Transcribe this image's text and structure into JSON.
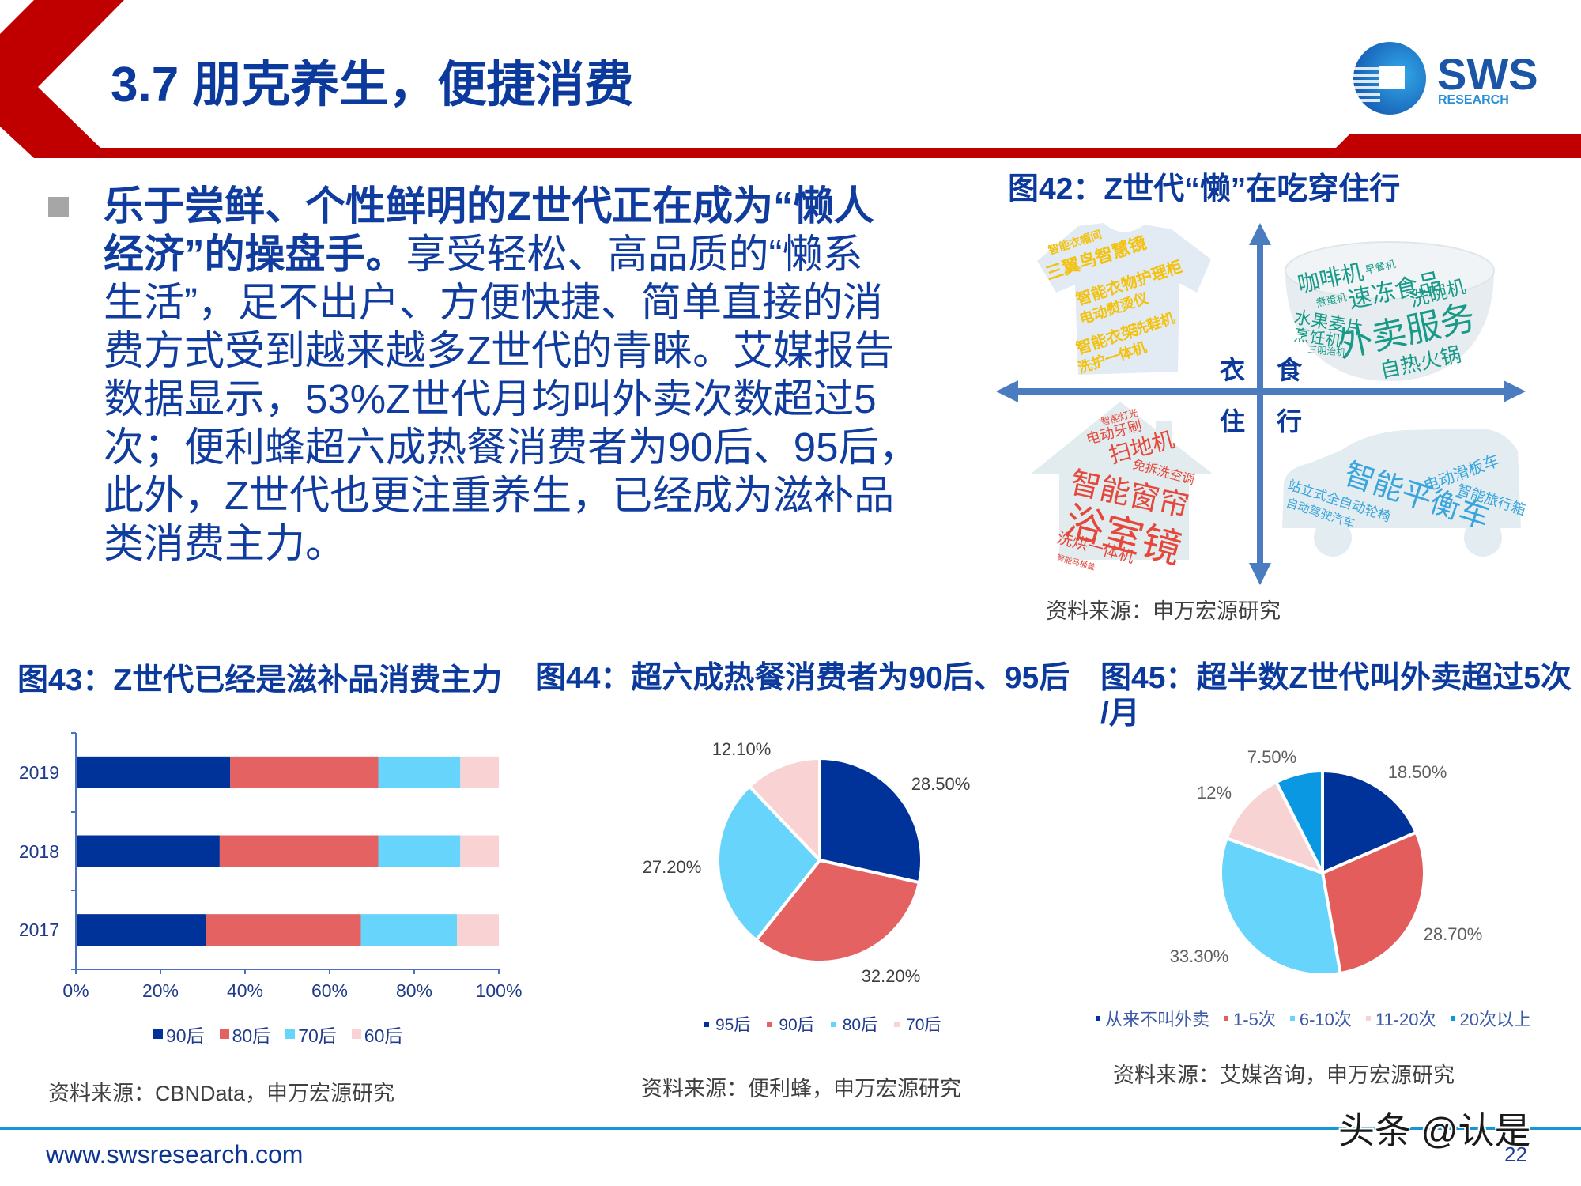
{
  "slide": {
    "title": "3.7 朋克养生，便捷消费",
    "logo": {
      "brand": "SWS",
      "sub": "RESEARCH"
    }
  },
  "bullet": {
    "lines": [
      {
        "bold": "乐于尝鲜、个性鲜明的Z世代正在成为“懒人",
        "normal": ""
      },
      {
        "bold": "经济”的操盘手。",
        "normal": "享受轻松、高品质的“懒系"
      },
      {
        "bold": "",
        "normal": "生活”，足不出户、方便快捷、简单直接的消"
      },
      {
        "bold": "",
        "normal": "费方式受到越来越多Z世代的青睐。艾媒报告"
      },
      {
        "bold": "",
        "normal": "数据显示，53%Z世代月均叫外卖次数超过5"
      },
      {
        "bold": "",
        "normal": "次；便利蜂超六成热餐消费者为90后、95后，"
      },
      {
        "bold": "",
        "normal": "此外，Z世代也更注重养生，已经成为滋补品"
      },
      {
        "bold": "",
        "normal": "类消费主力。"
      }
    ]
  },
  "fig42": {
    "title": "图42：Z世代“懒”在吃穿住行",
    "quadrants": {
      "clothing": {
        "label": "衣",
        "words": [
          "智能衣帽间",
          "三翼鸟智慧镜",
          "智能衣物护理柜",
          "电动熨烫仪",
          "洗鞋机",
          "智能衣架",
          "洗护一体机"
        ]
      },
      "food": {
        "label": "食",
        "words": [
          "咖啡机",
          "早餐机",
          "速冻食品",
          "洗碗机",
          "煮蛋机",
          "水果麦片",
          "烹饪机",
          "三明治机",
          "外卖服务",
          "自热火锅"
        ]
      },
      "housing": {
        "label": "住",
        "words": [
          "智能灯光",
          "电动牙刷",
          "扫地机",
          "免拆洗空调",
          "智能窗帘",
          "浴室镜",
          "洗烘一体机",
          "智能马桶盖"
        ]
      },
      "transport": {
        "label": "行",
        "words": [
          "电动滑板车",
          "智能平衡车",
          "智能旅行箱",
          "站立式全自动轮椅",
          "自动驾驶汽车"
        ]
      }
    },
    "source": "资料来源：申万宏源研究"
  },
  "fig43": {
    "title": "图43：Z世代已经是滋补品消费主力",
    "source": "资料来源：CBNData，申万宏源研究"
  },
  "fig44": {
    "title": "图44：超六成热餐消费者为90后、95后",
    "source": "资料来源：便利蜂，申万宏源研究"
  },
  "fig45": {
    "title_line1": "图45：超半数Z世代叫外卖超过5次",
    "title_line2": "/月",
    "source": "资料来源：艾媒咨询，申万宏源研究"
  },
  "footer": {
    "url": "www.swsresearch.com",
    "page_number": "22",
    "watermark": "头条 @认是"
  },
  "colors": {
    "title_blue": "#0b3a9c",
    "accent_red": "#c00000",
    "footer_line": "#1795d4",
    "arrow_blue": "#4a7cbf"
  },
  "chart_data": [
    {
      "id": "fig43",
      "type": "bar",
      "orientation": "horizontal",
      "stacked": true,
      "title": "图43：Z世代已经是滋补品消费主力",
      "categories": [
        "2019",
        "2018",
        "2017"
      ],
      "series": [
        {
          "name": "90后",
          "color": "#003399",
          "values": [
            36.5,
            34.0,
            30.8
          ]
        },
        {
          "name": "80后",
          "color": "#e46262",
          "values": [
            35.0,
            37.5,
            36.6
          ]
        },
        {
          "name": "70后",
          "color": "#67d5fb",
          "values": [
            19.4,
            19.4,
            22.7
          ]
        },
        {
          "name": "60后",
          "color": "#f9d3d3",
          "values": [
            9.1,
            9.1,
            9.9
          ]
        }
      ],
      "xlabel": "",
      "ylabel": "",
      "xlim": [
        0,
        100
      ],
      "xticks": [
        "0%",
        "20%",
        "40%",
        "60%",
        "80%",
        "100%"
      ],
      "grid": false,
      "legend_position": "bottom"
    },
    {
      "id": "fig44",
      "type": "pie",
      "title": "图44：超六成热餐消费者为90后、95后",
      "labels": [
        "95后",
        "90后",
        "80后",
        "70后"
      ],
      "values": [
        28.5,
        32.2,
        27.2,
        12.1
      ],
      "value_labels": [
        "28.50%",
        "32.20%",
        "27.20%",
        "12.10%"
      ],
      "colors": [
        "#003399",
        "#e46262",
        "#67d5fb",
        "#f9d3d3"
      ],
      "legend_position": "bottom"
    },
    {
      "id": "fig45",
      "type": "pie",
      "title": "图45：超半数Z世代叫外卖超过5次/月",
      "labels": [
        "从来不叫外卖",
        "1-5次",
        "6-10次",
        "11-20次",
        "20次以上"
      ],
      "values": [
        18.5,
        28.7,
        33.3,
        12,
        7.5
      ],
      "value_labels": [
        "18.50%",
        "28.70%",
        "33.30%",
        "12%",
        "7.50%"
      ],
      "colors": [
        "#003399",
        "#e35d5d",
        "#66d4fb",
        "#f8d3d4",
        "#0a98e2"
      ],
      "legend_position": "bottom"
    }
  ]
}
